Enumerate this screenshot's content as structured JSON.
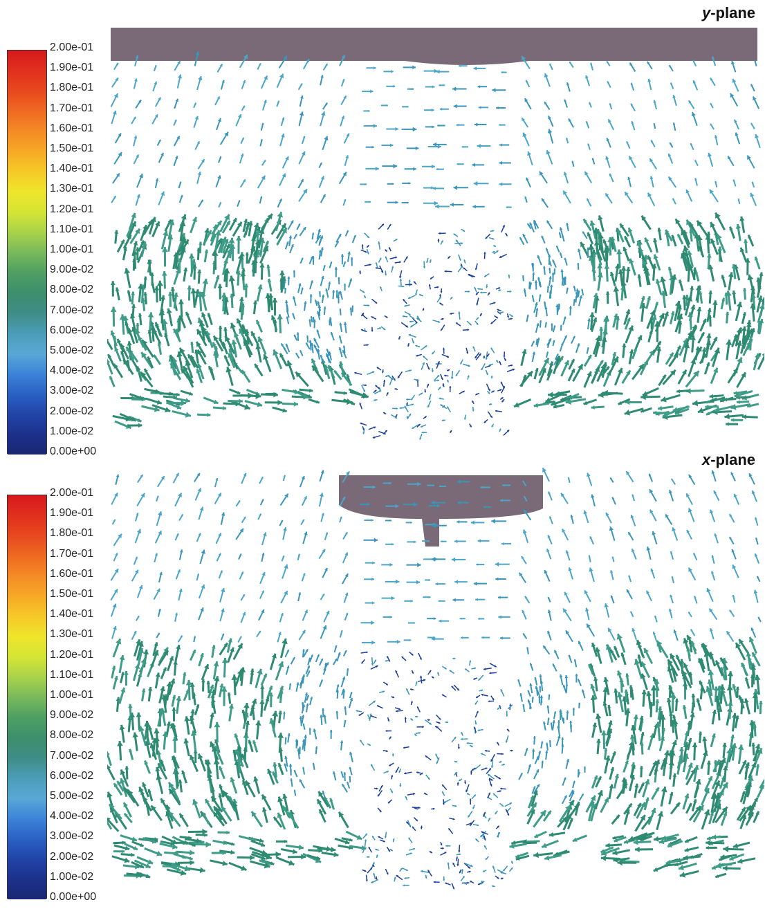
{
  "panels": [
    {
      "label_italic": "y",
      "label_rest": "-plane",
      "colorbar": {
        "ticks": [
          "2.00e-01",
          "1.90e-01",
          "1.80e-01",
          "1.70e-01",
          "1.60e-01",
          "1.50e-01",
          "1.40e-01",
          "1.30e-01",
          "1.20e-01",
          "1.10e-01",
          "1.00e-01",
          "9.00e-02",
          "8.00e-02",
          "7.00e-02",
          "6.00e-02",
          "5.00e-02",
          "4.00e-02",
          "3.00e-02",
          "2.00e-02",
          "1.00e-02",
          "0.00e+00"
        ]
      }
    },
    {
      "label_italic": "x",
      "label_rest": "-plane",
      "colorbar": {
        "ticks": [
          "2.00e-01",
          "1.90e-01",
          "1.80e-01",
          "1.70e-01",
          "1.60e-01",
          "1.50e-01",
          "1.40e-01",
          "1.30e-01",
          "1.20e-01",
          "1.10e-01",
          "1.00e-01",
          "9.00e-02",
          "8.00e-02",
          "7.00e-02",
          "6.00e-02",
          "5.00e-02",
          "4.00e-02",
          "3.00e-02",
          "2.00e-02",
          "1.00e-02",
          "0.00e+00"
        ]
      }
    }
  ],
  "colormap": [
    "#d7191c",
    "#e0301e",
    "#e8481f",
    "#ef6a22",
    "#f48b25",
    "#f7a926",
    "#f6c927",
    "#eee52a",
    "#d4e535",
    "#a9d24a",
    "#79b95b",
    "#4f9f63",
    "#3d8f6c",
    "#3e8d86",
    "#4b9db7",
    "#58a8d6",
    "#3d84d8",
    "#2a62c4",
    "#2245a8",
    "#1c318c",
    "#1a2772"
  ],
  "colors": {
    "impeller": "#7a6a78",
    "vector_high": "#2f8a72",
    "vector_mid": "#3a95b8",
    "vector_low": "#1b3f9a"
  }
}
